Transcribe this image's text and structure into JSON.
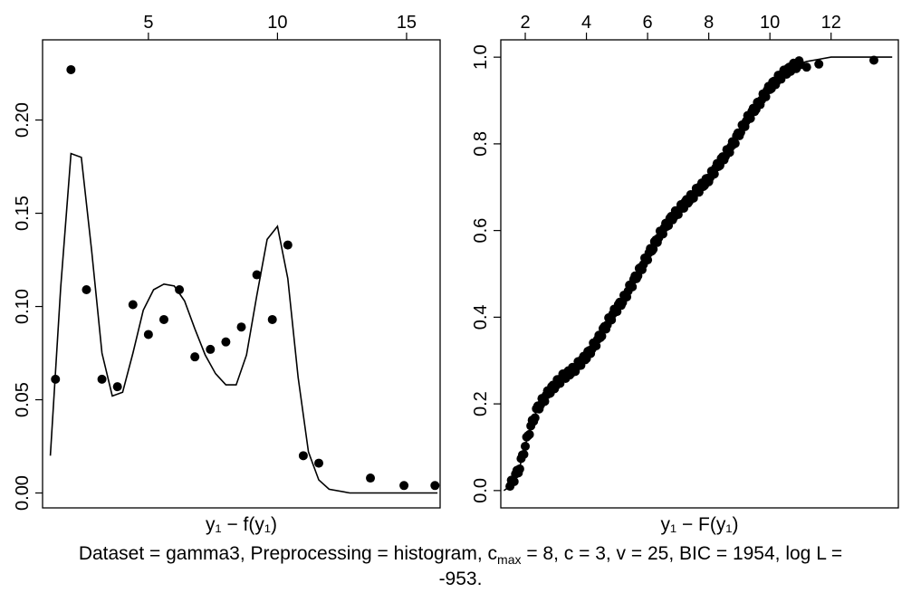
{
  "chart_data": [
    {
      "type": "scatter",
      "xlabel": "y₁ − f(y₁)",
      "xlim": [
        0.9,
        16.3
      ],
      "ylim": [
        -0.008,
        0.243
      ],
      "x_ticks": [
        5,
        10,
        15
      ],
      "y_ticks": [
        "0.00",
        "0.05",
        "0.10",
        "0.15",
        "0.20"
      ],
      "points": {
        "x": [
          1.4,
          2.0,
          2.6,
          3.2,
          3.8,
          4.4,
          5.0,
          5.6,
          6.2,
          6.8,
          7.4,
          8.0,
          8.6,
          9.2,
          9.8,
          10.4,
          11.0,
          11.6,
          13.6,
          14.9,
          16.1
        ],
        "y": [
          0.061,
          0.227,
          0.109,
          0.061,
          0.057,
          0.101,
          0.085,
          0.093,
          0.109,
          0.073,
          0.077,
          0.081,
          0.089,
          0.117,
          0.093,
          0.133,
          0.02,
          0.016,
          0.008,
          0.004,
          0.004
        ]
      },
      "curve": {
        "x": [
          1.2,
          1.6,
          2.0,
          2.4,
          2.8,
          3.2,
          3.6,
          4.0,
          4.4,
          4.8,
          5.2,
          5.6,
          6.0,
          6.4,
          6.8,
          7.2,
          7.6,
          8.0,
          8.4,
          8.8,
          9.2,
          9.6,
          10.0,
          10.4,
          10.8,
          11.2,
          11.6,
          12.0,
          12.8,
          14.0,
          15.0,
          16.2
        ],
        "y": [
          0.02,
          0.11,
          0.182,
          0.18,
          0.13,
          0.075,
          0.052,
          0.054,
          0.075,
          0.098,
          0.109,
          0.112,
          0.111,
          0.103,
          0.088,
          0.074,
          0.064,
          0.058,
          0.058,
          0.074,
          0.106,
          0.136,
          0.143,
          0.115,
          0.062,
          0.022,
          0.007,
          0.002,
          0.0,
          0.0,
          0.0,
          0.0
        ]
      }
    },
    {
      "type": "line",
      "xlabel": "y₁ − F(y₁)",
      "xlim": [
        1.2,
        14.2
      ],
      "ylim": [
        -0.04,
        1.04
      ],
      "x_ticks": [
        2,
        4,
        6,
        8,
        10,
        12
      ],
      "y_ticks": [
        "0.0",
        "0.2",
        "0.4",
        "0.6",
        "0.8",
        "1.0"
      ],
      "curve": {
        "x": [
          1.3,
          1.5,
          1.8,
          2.1,
          2.4,
          2.8,
          3.2,
          3.6,
          4.0,
          4.4,
          4.8,
          5.2,
          5.6,
          6.0,
          6.4,
          6.8,
          7.2,
          7.6,
          8.0,
          8.4,
          8.8,
          9.2,
          9.6,
          10.0,
          10.4,
          10.8,
          11.2,
          11.6,
          12.0,
          12.8,
          13.6,
          14.0
        ],
        "y": [
          0.0,
          0.01,
          0.05,
          0.13,
          0.19,
          0.23,
          0.26,
          0.28,
          0.31,
          0.35,
          0.4,
          0.44,
          0.49,
          0.54,
          0.59,
          0.63,
          0.66,
          0.69,
          0.72,
          0.76,
          0.8,
          0.85,
          0.89,
          0.93,
          0.96,
          0.98,
          0.99,
          0.995,
          1.0,
          1.0,
          1.0,
          1.0
        ]
      },
      "points_samples": {
        "x_start": 1.5,
        "x_end": 11.0,
        "count": 210,
        "extra_x": [
          11.2,
          11.6,
          13.4
        ],
        "extra_y": [
          0.977,
          0.984,
          0.993
        ]
      }
    }
  ],
  "caption": {
    "before_sub": "Dataset = gamma3, Preprocessing = histogram, c",
    "sub": "max",
    "after_sub": " = 8, c = 3, v = 25, BIC = 1954, log L =",
    "line2": "-953."
  }
}
